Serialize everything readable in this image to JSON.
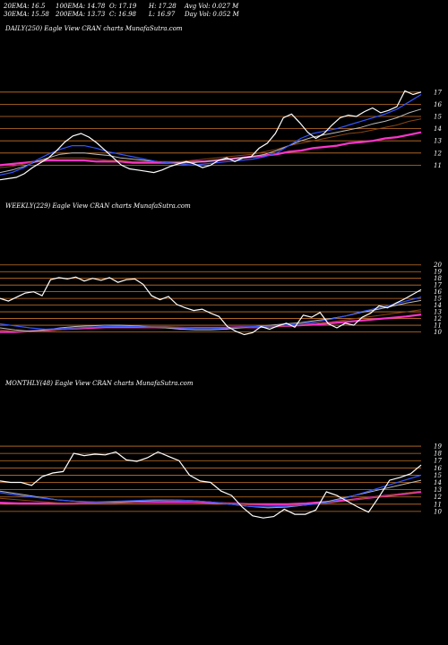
{
  "header": {
    "ema20": "20EMA: 16.5",
    "ema30": "30EMA: 15.58",
    "ema100": "100EMA: 14.78",
    "ema200": "200EMA: 13.73",
    "open": "O: 17.19",
    "close": "C: 16.98",
    "high": "H: 17.28",
    "low": "L: 16.97",
    "avg_vol": "Avg Vol: 0.027  M",
    "day_vol": "Day Vol: 0.052  M"
  },
  "colors": {
    "background": "#000000",
    "price": "#ffffff",
    "gridline": "#c8732a",
    "ema_blue": "#3355ff",
    "ema_magenta": "#ff33cc",
    "ema_brown": "#8b4513",
    "ema_grey": "#bbbbbb"
  },
  "chart_data": [
    {
      "type": "line",
      "title": "DAILY(250) Eagle  View  CRAN  charts MunafaSutra.com",
      "y_ticks": [
        "17",
        "16",
        "15",
        "14",
        "13",
        "12",
        "11"
      ],
      "ylim": [
        10,
        17.5
      ],
      "price": [
        9.8,
        9.9,
        10.0,
        10.3,
        10.8,
        11.2,
        11.6,
        12.2,
        12.9,
        13.4,
        13.6,
        13.3,
        12.8,
        12.2,
        11.6,
        11.0,
        10.7,
        10.6,
        10.5,
        10.4,
        10.6,
        10.9,
        11.1,
        11.3,
        11.1,
        10.8,
        11.0,
        11.4,
        11.6,
        11.3,
        11.6,
        11.7,
        12.4,
        12.8,
        13.6,
        14.9,
        15.2,
        14.5,
        13.7,
        13.2,
        13.6,
        14.3,
        14.9,
        15.1,
        15.0,
        15.4,
        15.7,
        15.3,
        15.5,
        15.8,
        17.1,
        16.8,
        17.0
      ],
      "series": [
        {
          "values": [
            10.2,
            10.4,
            10.8,
            11.4,
            11.9,
            12.3,
            12.6,
            12.6,
            12.4,
            12.1,
            11.9,
            11.7,
            11.5,
            11.3,
            11.2,
            11.1,
            11.0,
            11.1,
            11.2,
            11.3,
            11.4,
            11.5,
            11.7,
            12.0,
            12.6,
            13.2,
            13.6,
            13.8,
            14.0,
            14.3,
            14.6,
            14.9,
            15.2,
            15.6,
            16.2,
            16.8
          ]
        },
        {
          "values": [
            10.4,
            10.6,
            10.9,
            11.3,
            11.6,
            11.9,
            12.0,
            12.0,
            11.9,
            11.8,
            11.6,
            11.5,
            11.4,
            11.3,
            11.2,
            11.2,
            11.2,
            11.3,
            11.4,
            11.5,
            11.6,
            11.7,
            11.9,
            12.2,
            12.6,
            13.0,
            13.3,
            13.5,
            13.7,
            13.9,
            14.1,
            14.4,
            14.6,
            14.9,
            15.3,
            15.6
          ]
        },
        {
          "values": [
            10.8,
            10.9,
            11.1,
            11.3,
            11.5,
            11.6,
            11.6,
            11.6,
            11.5,
            11.4,
            11.4,
            11.3,
            11.3,
            11.3,
            11.3,
            11.3,
            11.4,
            11.5,
            11.6,
            11.7,
            11.8,
            11.9,
            12.1,
            12.3,
            12.6,
            12.8,
            13.0,
            13.2,
            13.4,
            13.6,
            13.7,
            13.9,
            14.1,
            14.3,
            14.6,
            14.8
          ]
        },
        {
          "values": [
            11.0,
            11.1,
            11.2,
            11.3,
            11.4,
            11.4,
            11.4,
            11.4,
            11.3,
            11.3,
            11.3,
            11.2,
            11.2,
            11.2,
            11.2,
            11.2,
            11.3,
            11.3,
            11.4,
            11.5,
            11.6,
            11.7,
            11.8,
            11.9,
            12.1,
            12.2,
            12.4,
            12.5,
            12.6,
            12.8,
            12.9,
            13.0,
            13.2,
            13.3,
            13.5,
            13.7
          ]
        }
      ]
    },
    {
      "type": "line",
      "title": "WEEKLY(229) Eagle  View  CRAN  charts MunafaSutra.com",
      "y_ticks": [
        "20",
        "19",
        "18",
        "17",
        "16",
        "15",
        "14",
        "13",
        "12",
        "11",
        "10"
      ],
      "ylim": [
        9,
        20.5
      ],
      "price": [
        15.0,
        14.6,
        15.2,
        15.8,
        16.0,
        15.4,
        17.8,
        18.1,
        17.9,
        18.2,
        17.6,
        18.0,
        17.7,
        18.1,
        17.4,
        17.8,
        17.9,
        17.1,
        15.4,
        14.8,
        15.3,
        14.1,
        13.6,
        13.2,
        13.4,
        12.8,
        12.3,
        10.8,
        10.1,
        9.6,
        9.9,
        10.8,
        10.4,
        10.9,
        11.3,
        10.7,
        12.5,
        12.2,
        12.9,
        11.2,
        10.6,
        11.3,
        11.0,
        12.2,
        12.8,
        13.9,
        13.6,
        14.3,
        14.9,
        15.6,
        16.3
      ],
      "series": [
        {
          "values": [
            11.2,
            10.9,
            10.6,
            10.4,
            10.5,
            10.6,
            10.7,
            10.8,
            10.8,
            10.8,
            10.7,
            10.7,
            10.6,
            10.5,
            10.5,
            10.6,
            10.7,
            10.8,
            10.9,
            11.0,
            11.2,
            11.5,
            11.9,
            12.4,
            13.0,
            13.5,
            14.0,
            14.6,
            15.2
          ]
        },
        {
          "values": [
            10.6,
            10.3,
            10.1,
            10.3,
            10.6,
            10.8,
            10.9,
            11.0,
            11.0,
            10.9,
            10.7,
            10.6,
            10.4,
            10.3,
            10.3,
            10.4,
            10.6,
            10.8,
            11.0,
            11.2,
            11.4,
            11.7,
            12.0,
            12.4,
            12.9,
            13.3,
            13.8,
            14.3,
            14.7
          ]
        },
        {
          "values": [
            10.3,
            10.1,
            10.0,
            10.1,
            10.3,
            10.5,
            10.7,
            10.8,
            10.9,
            10.9,
            10.8,
            10.8,
            10.7,
            10.6,
            10.6,
            10.6,
            10.6,
            10.7,
            10.8,
            10.9,
            11.1,
            11.3,
            11.5,
            11.8,
            12.1,
            12.4,
            12.7,
            13.0,
            13.3
          ]
        },
        {
          "values": [
            10.0,
            10.0,
            10.1,
            10.2,
            10.4,
            10.5,
            10.6,
            10.7,
            10.7,
            10.7,
            10.7,
            10.7,
            10.6,
            10.6,
            10.6,
            10.6,
            10.7,
            10.7,
            10.8,
            10.9,
            11.0,
            11.1,
            11.3,
            11.5,
            11.7,
            11.9,
            12.1,
            12.3,
            12.6
          ]
        }
      ]
    },
    {
      "type": "line",
      "title": "MONTHLY(48) Eagle  View  CRAN  charts MunafaSutra.com",
      "y_ticks": [
        "19",
        "18",
        "17",
        "16",
        "15",
        "14",
        "13",
        "12",
        "11",
        "10"
      ],
      "ylim": [
        9,
        19.5
      ],
      "price": [
        14.2,
        14.0,
        14.0,
        13.6,
        14.8,
        15.3,
        15.5,
        18.0,
        17.7,
        17.9,
        17.8,
        18.2,
        17.1,
        16.9,
        17.4,
        18.2,
        17.6,
        17.0,
        15.0,
        14.2,
        14.0,
        12.8,
        12.2,
        10.6,
        9.4,
        9.1,
        9.3,
        10.3,
        9.6,
        9.6,
        10.2,
        12.7,
        12.2,
        11.4,
        10.6,
        9.9,
        12.0,
        14.3,
        14.7,
        15.2,
        16.4
      ],
      "series": [
        {
          "values": [
            12.6,
            12.2,
            11.9,
            11.6,
            11.4,
            11.3,
            11.4,
            11.5,
            11.6,
            11.6,
            11.5,
            11.3,
            11.0,
            10.7,
            10.6,
            10.7,
            10.9,
            11.2,
            11.8,
            12.6,
            13.4,
            14.2,
            15.0
          ]
        },
        {
          "values": [
            12.8,
            12.4,
            12.0,
            11.6,
            11.4,
            11.3,
            11.3,
            11.4,
            11.5,
            11.6,
            11.5,
            11.3,
            11.0,
            10.7,
            10.5,
            10.6,
            10.9,
            11.3,
            11.9,
            12.5,
            13.1,
            13.7,
            14.3
          ]
        },
        {
          "values": [
            11.8,
            11.6,
            11.4,
            11.2,
            11.1,
            11.1,
            11.2,
            11.3,
            11.4,
            11.5,
            11.4,
            11.3,
            11.1,
            10.9,
            10.8,
            10.8,
            10.9,
            11.1,
            11.4,
            11.8,
            12.1,
            12.5,
            12.8
          ]
        },
        {
          "values": [
            11.2,
            11.1,
            11.1,
            11.1,
            11.1,
            11.2,
            11.2,
            11.3,
            11.3,
            11.3,
            11.3,
            11.2,
            11.1,
            11.0,
            11.0,
            11.0,
            11.1,
            11.3,
            11.5,
            11.8,
            12.1,
            12.4,
            12.7
          ]
        }
      ]
    }
  ]
}
